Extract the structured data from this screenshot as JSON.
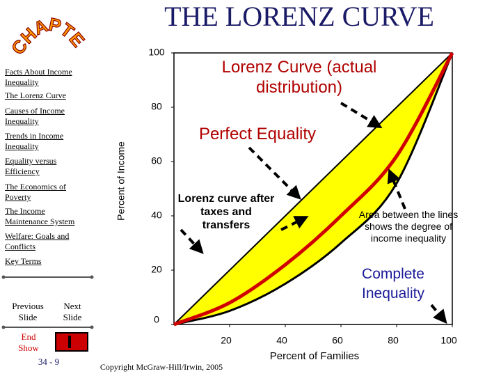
{
  "header": {
    "title": "THE LORENZ CURVE",
    "logo": "CHAPTER"
  },
  "sidebar": {
    "links": [
      "Facts About Income Inequality",
      "The Lorenz Curve",
      "Causes of Income Inequality",
      "Trends in Income Inequality",
      "Equality versus Efficiency",
      "The Economics of Poverty",
      "The Income Maintenance System",
      "Welfare: Goals and Conflicts",
      "Key Terms"
    ],
    "previous": "Previous Slide",
    "next": "Next Slide",
    "end": "End Show",
    "page": "34 - 9"
  },
  "footer": {
    "copyright": "Copyright McGraw-Hill/Irwin, 2005"
  },
  "chart_data": {
    "type": "line",
    "x": [
      0,
      20,
      40,
      60,
      80,
      100
    ],
    "series": [
      {
        "name": "Perfect Equality",
        "color": "#000000",
        "values": [
          0,
          20,
          40,
          60,
          80,
          100
        ]
      },
      {
        "name": "Lorenz Curve (actual distribution)",
        "color": "#000000",
        "values": [
          0,
          5,
          15,
          30,
          52,
          100
        ]
      },
      {
        "name": "Lorenz curve after taxes and transfers",
        "color": "#d00000",
        "values": [
          0,
          8,
          22,
          40,
          62,
          100
        ]
      }
    ],
    "area_color": "#ffff00",
    "xlabel": "Percent of Families",
    "ylabel": "Percent of Income",
    "xlim": [
      0,
      100
    ],
    "ylim": [
      0,
      100
    ],
    "xticks": [
      20,
      40,
      60,
      80,
      100
    ],
    "yticks": [
      0,
      20,
      40,
      60,
      80,
      100
    ],
    "annotations": [
      "Area between the lines shows the degree of income inequality",
      "Complete Inequality"
    ]
  }
}
